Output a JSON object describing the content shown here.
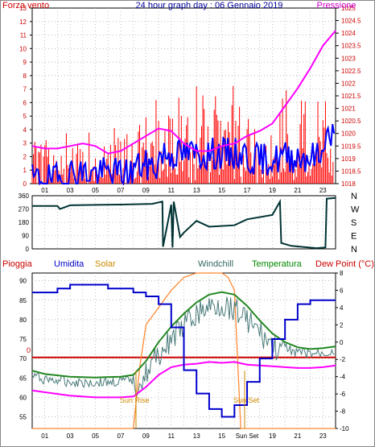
{
  "top": {
    "header": {
      "left": "Forza vento",
      "center": "24 hour graph day : 06 Gennaio 2019",
      "right": "Pressione"
    },
    "left_axis_ticks": [
      "0",
      "1",
      "2",
      "3",
      "4",
      "5",
      "6",
      "7",
      "8",
      "9",
      "10",
      "11",
      "12",
      "13"
    ],
    "right_axis_ticks": [
      "1018",
      "1018.5",
      "1019",
      "1019.5",
      "1020",
      "1020.5",
      "1021",
      "1021.5",
      "1022",
      "1022.5",
      "1023",
      "1023.5",
      "1024",
      "1024.5",
      "1025"
    ],
    "colors": {
      "wind_gust": "#ff0000",
      "wind_avg": "#0000ff",
      "pressure": "#ff00ff",
      "left_axis": "#cc0000",
      "right_axis": "#cc0000"
    }
  },
  "middle": {
    "left_axis_ticks": [
      "0",
      "90",
      "180",
      "270",
      "360"
    ],
    "compass_labels": [
      "N",
      "W",
      "S",
      "E",
      "N"
    ],
    "colors": {
      "direction": "#003333"
    }
  },
  "bottom": {
    "header": {
      "rain": "Pioggia",
      "humidity": "Umidita",
      "solar": "Solar",
      "windchill": "Windchill",
      "temperature": "Temperatura",
      "dewpoint": "Dew Point (°C)"
    },
    "left_axis_ticks": [
      "55",
      "60",
      "65",
      "70",
      "75",
      "80",
      "85",
      "90"
    ],
    "right_axis_ticks": [
      "-10",
      "-8",
      "-6",
      "-4",
      "-2",
      "0",
      "2",
      "4",
      "6",
      "8"
    ],
    "rain_zero_label": "0",
    "sunrise_label": "Sun Rise",
    "sunset_label": "Sun Set",
    "colors": {
      "rain": "#cc0000",
      "humidity": "#0000cc",
      "solar": "#ff8833",
      "windchill": "#336666",
      "temperature": "#228822",
      "dewpoint": "#ff00ff",
      "header_rain": "#cc0000",
      "header_humidity": "#0000cc",
      "header_solar": "#cc8800",
      "header_windchill": "#336666",
      "header_temperature": "#008800",
      "header_dewpoint": "#cc0000"
    }
  },
  "x_axis_ticks": [
    "01",
    "03",
    "05",
    "07",
    "09",
    "11",
    "13",
    "15",
    "17",
    "19",
    "21",
    "23"
  ],
  "x_axis_ticks_bottom": [
    "01",
    "03",
    "05",
    "07",
    "09",
    "11",
    "13",
    "15",
    "Sun Set",
    "19",
    "21",
    "23"
  ],
  "chart_data": [
    {
      "type": "line",
      "title": "24 hour graph day : 06 Gennaio 2019",
      "ylabel": "Forza vento",
      "y2label": "Pressione",
      "ylim": [
        0,
        13
      ],
      "y2lim": [
        1018,
        1025
      ],
      "xlim": [
        0,
        24
      ],
      "series": [
        {
          "name": "Pressione",
          "axis": "right",
          "x": [
            0,
            1,
            2,
            3,
            4,
            5,
            6,
            7,
            8,
            9,
            10,
            11,
            12,
            13,
            14,
            15,
            16,
            17,
            18,
            19,
            20,
            21,
            22,
            23,
            24
          ],
          "values": [
            1019.5,
            1019.4,
            1019.4,
            1019.5,
            1019.6,
            1019.5,
            1019.2,
            1019.3,
            1019.6,
            1019.9,
            1020.2,
            1020.1,
            1019.6,
            1019.3,
            1019.3,
            1019.5,
            1019.6,
            1019.9,
            1020.1,
            1020.4,
            1021.1,
            1021.8,
            1022.6,
            1023.5,
            1024.1
          ]
        }
      ]
    },
    {
      "type": "line",
      "ylim": [
        0,
        360
      ],
      "xlim": [
        0,
        24
      ],
      "series": [
        {
          "x": [
            0,
            2,
            2.2,
            3,
            5,
            7,
            9.5,
            10.3,
            10.35,
            11,
            11.1,
            11.2,
            11.7,
            12,
            13,
            14,
            16,
            17,
            19,
            19.6,
            19.7,
            20.5,
            22.5,
            23.2,
            23.3,
            24
          ],
          "values": [
            290,
            290,
            270,
            295,
            298,
            300,
            305,
            320,
            15,
            300,
            10,
            320,
            80,
            110,
            190,
            150,
            160,
            200,
            230,
            320,
            40,
            20,
            5,
            10,
            340,
            345
          ]
        }
      ]
    },
    {
      "type": "line",
      "ylabel": "Umidita",
      "y2label": "Dew Point (°C)",
      "ylim": [
        52,
        92
      ],
      "y2lim": [
        -10,
        8
      ],
      "xlim": [
        0,
        24
      ],
      "series": [
        {
          "name": "Umidita",
          "axis": "left",
          "x": [
            0,
            2,
            3,
            4,
            6,
            8,
            9,
            10,
            11,
            12,
            13,
            14,
            15,
            16,
            17,
            18,
            19,
            20,
            21,
            22,
            23,
            24
          ],
          "values": [
            87,
            88,
            89,
            89,
            88,
            87,
            86,
            84,
            78,
            67,
            61,
            57,
            55,
            58,
            64,
            70,
            75,
            80,
            84,
            85,
            85,
            85
          ]
        },
        {
          "name": "Temperatura",
          "axis": "right",
          "x": [
            0,
            1,
            3,
            5,
            7,
            8,
            9,
            10,
            11,
            12,
            13,
            14,
            15,
            16,
            17,
            18,
            19,
            20,
            21,
            22,
            23,
            24
          ],
          "values": [
            -3.3,
            -3.7,
            -4.0,
            -4.1,
            -4.0,
            -3.8,
            -2.2,
            0,
            1.8,
            3.3,
            4.6,
            5.5,
            5.8,
            5.5,
            4.2,
            2.5,
            1.0,
            0,
            -0.6,
            -0.8,
            -0.7,
            -0.5
          ]
        },
        {
          "name": "Dew Point",
          "axis": "right",
          "x": [
            0,
            1,
            3,
            5,
            7,
            8,
            9,
            10,
            11,
            12,
            13,
            14,
            15,
            16,
            17,
            18,
            19,
            20,
            21,
            22,
            23,
            24
          ],
          "values": [
            -5.6,
            -5.8,
            -6.2,
            -6.4,
            -6.4,
            -6.3,
            -5.2,
            -3.8,
            -2.9,
            -2.6,
            -2.5,
            -2.3,
            -2.4,
            -2.3,
            -2.6,
            -2.7,
            -2.8,
            -2.9,
            -3.0,
            -3.0,
            -2.9,
            -2.7
          ]
        },
        {
          "name": "Solar",
          "axis": "right",
          "x": [
            0,
            8,
            8.5,
            9,
            10,
            11,
            12,
            13,
            14,
            15,
            15.5,
            16,
            16.5,
            24
          ],
          "values": [
            -10,
            -10,
            -3,
            2,
            4,
            6,
            7.5,
            8,
            8,
            8,
            7.5,
            6,
            -10,
            -10
          ]
        },
        {
          "name": "Pioggia",
          "axis": "left",
          "x": [
            0,
            24
          ],
          "values": [
            70.3,
            70.3
          ]
        }
      ]
    }
  ]
}
